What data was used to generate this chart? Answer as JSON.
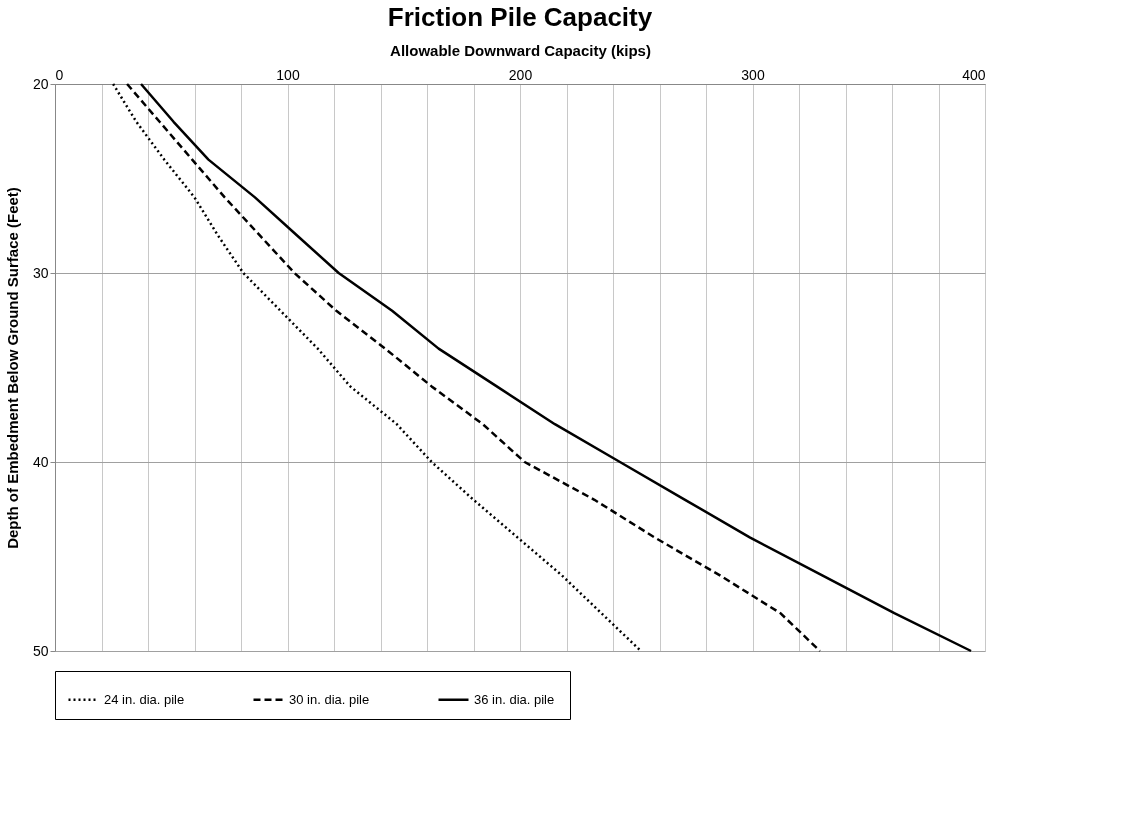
{
  "chart_data": {
    "type": "line",
    "title": "Friction Pile Capacity",
    "xlabel": "Allowable Downward Capacity (kips)",
    "ylabel": "Depth of Embedment Below Ground Surface (Feet)",
    "xlim": [
      0,
      400
    ],
    "xticks": [
      0,
      {
        "value": 20,
        "label": null
      },
      {
        "value": 40,
        "label": null
      },
      {
        "value": 60,
        "label": null
      },
      {
        "value": 80,
        "label": null
      },
      100,
      {
        "value": 120,
        "label": null
      },
      {
        "value": 140,
        "label": null
      },
      {
        "value": 160,
        "label": null
      },
      {
        "value": 180,
        "label": null
      },
      200,
      {
        "value": 220,
        "label": null
      },
      {
        "value": 240,
        "label": null
      },
      {
        "value": 260,
        "label": null
      },
      {
        "value": 280,
        "label": null
      },
      300,
      {
        "value": 320,
        "label": null
      },
      {
        "value": 340,
        "label": null
      },
      {
        "value": 360,
        "label": null
      },
      {
        "value": 380,
        "label": null
      },
      400
    ],
    "ylim": [
      50,
      20
    ],
    "yticks": [
      20,
      30,
      40,
      50
    ],
    "grid": true,
    "legend": "bottom",
    "marker": "none",
    "series": [
      {
        "name": "24  in. dia. pile",
        "color": "#000000",
        "line_style": "dotted",
        "x": [
          25,
          35,
          47,
          60,
          70,
          81,
          97,
          113,
          127,
          147,
          162,
          180,
          199,
          218,
          235,
          252
        ],
        "values": [
          20,
          22,
          24,
          26,
          28,
          30,
          32,
          34,
          36,
          38,
          40,
          42,
          44,
          46,
          48,
          50
        ]
      },
      {
        "name": "30  in. dia. pile",
        "color": "#000000",
        "line_style": "dashed",
        "x": [
          31,
          45,
          59,
          73,
          88,
          103,
          121,
          142,
          162,
          184,
          202,
          232,
          258,
          286,
          312,
          329
        ],
        "values": [
          20,
          22,
          24,
          26,
          28,
          30,
          32,
          34,
          36,
          38,
          40,
          42,
          44,
          46,
          48,
          50
        ]
      },
      {
        "name": "36  in. dia. pile",
        "color": "#000000",
        "line_style": "solid",
        "x": [
          37,
          51,
          66,
          86,
          104,
          122,
          145,
          165,
          190,
          215,
          243,
          271,
          299,
          330,
          361,
          394
        ],
        "values": [
          20,
          22,
          24,
          26,
          28,
          30,
          32,
          34,
          36,
          38,
          40,
          42,
          44,
          46,
          48,
          50
        ]
      }
    ]
  }
}
